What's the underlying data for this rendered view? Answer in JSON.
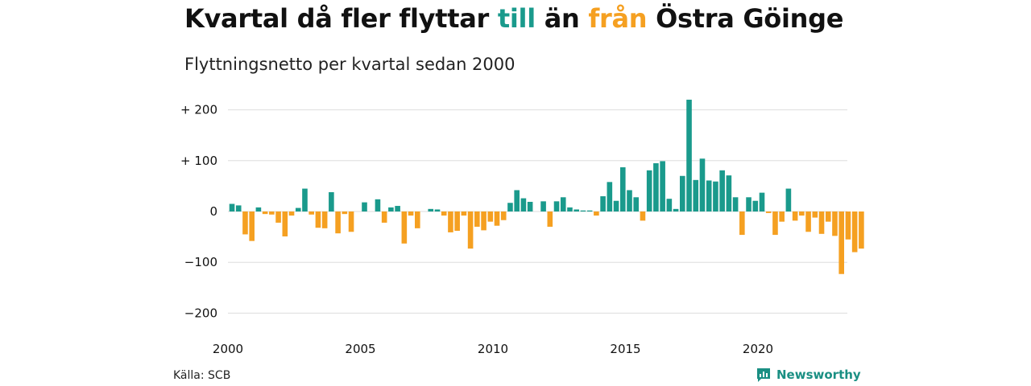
{
  "title": {
    "part1": "Kvartal då fler flyttar ",
    "till": "till",
    "part2": " än ",
    "fran": "från",
    "part3": " Östra Göinge"
  },
  "subtitle": "Flyttningsnetto per kvartal sedan 2000",
  "source": "Källa: SCB",
  "brand": {
    "name": "Newsworthy",
    "icon": "newsworthy-logo-icon"
  },
  "colors": {
    "positive": "#1a9a8c",
    "negative": "#f5a021",
    "grid": "#dddddd"
  },
  "chart_data": {
    "type": "bar",
    "start_year": 2000,
    "x_ticks": [
      2000,
      2005,
      2010,
      2015,
      2020
    ],
    "y_ticks": [
      {
        "value": 200,
        "label": "+ 200"
      },
      {
        "value": 100,
        "label": "+ 100"
      },
      {
        "value": 0,
        "label": "0"
      },
      {
        "value": -100,
        "label": "−100"
      },
      {
        "value": -200,
        "label": "−200"
      }
    ],
    "ylim": [
      -215,
      225
    ],
    "values": [
      15,
      12,
      -45,
      -58,
      8,
      -5,
      -6,
      -22,
      -49,
      -8,
      7,
      45,
      -6,
      -32,
      -33,
      38,
      -43,
      -5,
      -40,
      0,
      18,
      0,
      24,
      -22,
      8,
      11,
      -63,
      -8,
      -33,
      0,
      5,
      4,
      -8,
      -41,
      -38,
      -8,
      -73,
      -30,
      -37,
      -20,
      -28,
      -17,
      17,
      42,
      26,
      19,
      0,
      20,
      -30,
      20,
      28,
      8,
      4,
      2,
      2,
      -8,
      30,
      58,
      21,
      87,
      42,
      28,
      -18,
      81,
      95,
      99,
      25,
      5,
      70,
      220,
      62,
      104,
      61,
      59,
      81,
      71,
      28,
      -46,
      28,
      21,
      37,
      -3,
      -46,
      -20,
      45,
      -18,
      -8,
      -40,
      -12,
      -44,
      -20,
      -48,
      -123,
      -55,
      -80,
      -73
    ]
  }
}
